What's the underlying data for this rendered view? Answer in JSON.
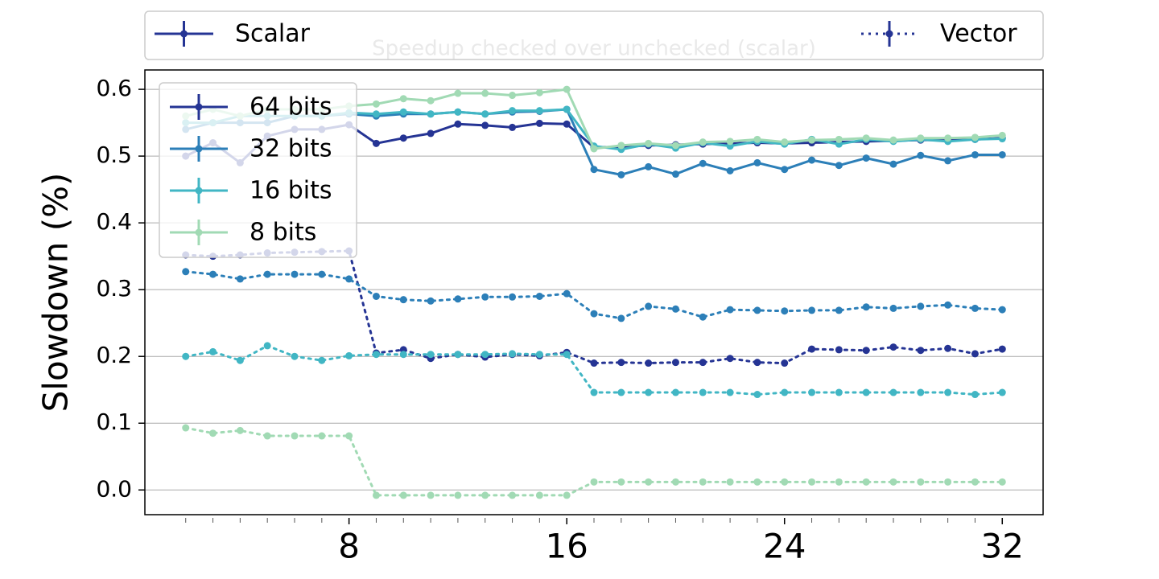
{
  "chart_data": {
    "type": "line",
    "title": "Speedup checked over unchecked (scalar)",
    "ylabel": "Slowdown (%)",
    "x": [
      2,
      3,
      4,
      5,
      6,
      7,
      8,
      9,
      10,
      11,
      12,
      13,
      14,
      15,
      16,
      17,
      18,
      19,
      20,
      21,
      22,
      23,
      24,
      25,
      26,
      27,
      28,
      29,
      30,
      31,
      32
    ],
    "xlim": [
      0.5,
      33.5
    ],
    "xticks": [
      8,
      16,
      24,
      32
    ],
    "xminorticks": [
      2,
      3,
      4,
      5,
      6,
      7,
      8,
      9,
      10,
      11,
      12,
      13,
      14,
      15,
      16,
      17,
      18,
      19,
      20,
      21,
      22,
      23,
      24,
      25,
      26,
      27,
      28,
      29,
      30,
      31,
      32
    ],
    "ylim": [
      -0.037,
      0.629
    ],
    "yticks": [
      {
        "value": 0,
        "label": "0.0"
      },
      0.1,
      0.2,
      0.3,
      0.4,
      0.5,
      0.6
    ],
    "grid": true,
    "bit_widths": [
      {
        "name": "64 bits",
        "color": "#253494"
      },
      {
        "name": "32 bits",
        "color": "#2c7fb8"
      },
      {
        "name": "16 bits",
        "color": "#41b6c4"
      },
      {
        "name": "8 bits",
        "color": "#a1dab4"
      }
    ],
    "groups": [
      {
        "name": "Scalar",
        "dash": "solid",
        "values": [
          [
            0.5,
            0.52,
            0.49,
            0.53,
            0.54,
            0.54,
            0.547,
            0.519,
            0.527,
            0.534,
            0.548,
            0.546,
            0.543,
            0.549,
            0.548,
            0.513,
            0.514,
            0.516,
            0.517,
            0.518,
            0.519,
            0.52,
            0.519,
            0.52,
            0.521,
            0.522,
            0.523,
            0.524,
            0.524,
            0.525,
            0.527
          ],
          [
            0.54,
            0.55,
            0.55,
            0.55,
            0.56,
            0.56,
            0.563,
            0.56,
            0.563,
            0.563,
            0.566,
            0.563,
            0.566,
            0.567,
            0.57,
            0.48,
            0.472,
            0.484,
            0.473,
            0.489,
            0.478,
            0.49,
            0.48,
            0.494,
            0.486,
            0.497,
            0.488,
            0.501,
            0.493,
            0.502,
            0.502
          ],
          [
            0.55,
            0.55,
            0.56,
            0.56,
            0.56,
            0.56,
            0.565,
            0.563,
            0.566,
            0.563,
            0.566,
            0.563,
            0.568,
            0.568,
            0.57,
            0.515,
            0.51,
            0.518,
            0.512,
            0.52,
            0.515,
            0.522,
            0.518,
            0.525,
            0.518,
            0.525,
            0.522,
            0.525,
            0.522,
            0.525,
            0.526
          ],
          [
            0.56,
            0.57,
            0.56,
            0.57,
            0.57,
            0.57,
            0.575,
            0.578,
            0.586,
            0.583,
            0.594,
            0.594,
            0.591,
            0.595,
            0.6,
            0.511,
            0.516,
            0.519,
            0.516,
            0.521,
            0.522,
            0.525,
            0.521,
            0.524,
            0.525,
            0.527,
            0.524,
            0.527,
            0.527,
            0.528,
            0.531
          ]
        ]
      },
      {
        "name": "Vector",
        "dash": "dotted",
        "values": [
          [
            0.352,
            0.35,
            0.352,
            0.355,
            0.356,
            0.357,
            0.358,
            0.205,
            0.21,
            0.197,
            0.203,
            0.199,
            0.203,
            0.201,
            0.206,
            0.19,
            0.191,
            0.19,
            0.191,
            0.191,
            0.197,
            0.191,
            0.19,
            0.211,
            0.21,
            0.209,
            0.214,
            0.209,
            0.212,
            0.204,
            0.211
          ],
          [
            0.327,
            0.323,
            0.316,
            0.323,
            0.323,
            0.323,
            0.316,
            0.29,
            0.285,
            0.283,
            0.286,
            0.289,
            0.289,
            0.29,
            0.294,
            0.264,
            0.257,
            0.275,
            0.271,
            0.259,
            0.27,
            0.269,
            0.268,
            0.269,
            0.269,
            0.274,
            0.272,
            0.275,
            0.277,
            0.272,
            0.27
          ],
          [
            0.2,
            0.207,
            0.194,
            0.216,
            0.2,
            0.194,
            0.201,
            0.203,
            0.203,
            0.203,
            0.203,
            0.203,
            0.204,
            0.203,
            0.203,
            0.146,
            0.146,
            0.146,
            0.146,
            0.146,
            0.146,
            0.143,
            0.146,
            0.146,
            0.146,
            0.146,
            0.146,
            0.146,
            0.146,
            0.143,
            0.146
          ],
          [
            0.093,
            0.085,
            0.089,
            0.081,
            0.081,
            0.081,
            0.081,
            -0.008,
            -0.008,
            -0.008,
            -0.008,
            -0.008,
            -0.008,
            -0.008,
            -0.008,
            0.012,
            0.012,
            0.012,
            0.012,
            0.012,
            0.012,
            0.012,
            0.012,
            0.012,
            0.012,
            0.012,
            0.012,
            0.012,
            0.012,
            0.012,
            0.012
          ]
        ]
      }
    ]
  }
}
